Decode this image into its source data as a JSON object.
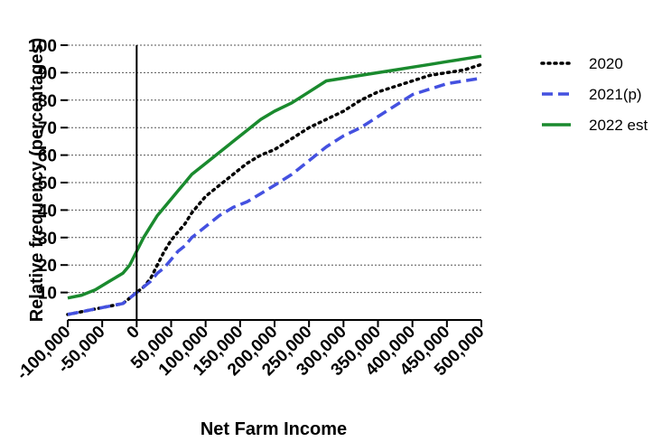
{
  "chart_data": {
    "type": "line",
    "title": "",
    "xlabel": "Net Farm Income",
    "ylabel": "Relative frequency (percentages)",
    "xlim": [
      -100000,
      500000
    ],
    "ylim": [
      0,
      100
    ],
    "grid": "horizontal-dotted",
    "legend_position": "right",
    "x_tick_labels": [
      "-100,000",
      "-50,000",
      "0",
      "50,000",
      "100,000",
      "150,000",
      "200,000",
      "250,000",
      "300,000",
      "350,000",
      "400,000",
      "450,000",
      "500,000"
    ],
    "y_tick_labels": [
      "10",
      "20",
      "30",
      "40",
      "50",
      "60",
      "70",
      "80",
      "90",
      "100"
    ],
    "series": [
      {
        "name": "2020",
        "style": "dotted",
        "color": "#000000",
        "x": [
          -100000,
          -80000,
          -60000,
          -40000,
          -20000,
          -10000,
          0,
          10000,
          20000,
          30000,
          40000,
          50000,
          60000,
          70000,
          80000,
          100000,
          120000,
          140000,
          160000,
          180000,
          200000,
          225000,
          250000,
          275000,
          300000,
          325000,
          350000,
          375000,
          400000,
          425000,
          450000,
          475000,
          500000
        ],
        "y": [
          2,
          3,
          4,
          5,
          6,
          8,
          10,
          12,
          15,
          20,
          25,
          29,
          32,
          35,
          39,
          45,
          49,
          53,
          57,
          60,
          62,
          66,
          70,
          73,
          76,
          80,
          83,
          85,
          87,
          89,
          90,
          91,
          93
        ]
      },
      {
        "name": "2021(p)",
        "style": "dashed",
        "color": "#4451e0",
        "x": [
          -100000,
          -80000,
          -60000,
          -40000,
          -20000,
          -10000,
          0,
          10000,
          20000,
          30000,
          40000,
          50000,
          60000,
          70000,
          80000,
          100000,
          120000,
          140000,
          160000,
          180000,
          200000,
          225000,
          250000,
          275000,
          300000,
          325000,
          350000,
          375000,
          400000,
          425000,
          450000,
          475000,
          500000
        ],
        "y": [
          2,
          3,
          4,
          5,
          6,
          8,
          10,
          12,
          14,
          17,
          19,
          22,
          25,
          27,
          30,
          34,
          38,
          41,
          43,
          46,
          49,
          53,
          58,
          63,
          67,
          70,
          74,
          78,
          82,
          84,
          86,
          87,
          88
        ]
      },
      {
        "name": "2022 est",
        "style": "solid",
        "color": "#1a8a2e",
        "x": [
          -100000,
          -80000,
          -60000,
          -40000,
          -20000,
          -10000,
          0,
          10000,
          20000,
          30000,
          40000,
          50000,
          60000,
          70000,
          80000,
          100000,
          120000,
          140000,
          160000,
          180000,
          200000,
          225000,
          250000,
          275000,
          300000,
          325000,
          350000,
          375000,
          400000,
          425000,
          450000,
          475000,
          500000
        ],
        "y": [
          8,
          9,
          11,
          14,
          17,
          20,
          25,
          30,
          34,
          38,
          41,
          44,
          47,
          50,
          53,
          57,
          61,
          65,
          69,
          73,
          76,
          79,
          83,
          87,
          88,
          89,
          90,
          91,
          92,
          93,
          94,
          95,
          96
        ]
      }
    ]
  }
}
